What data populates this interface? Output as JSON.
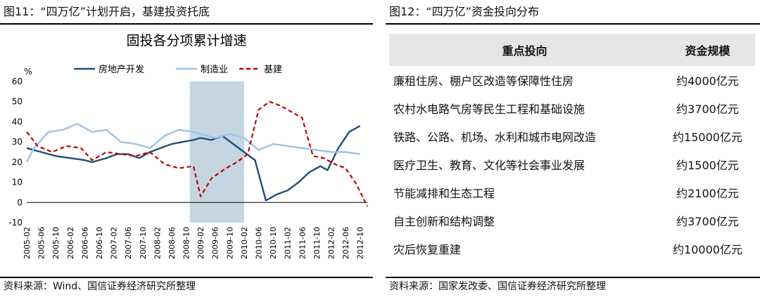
{
  "left_panel": {
    "title": "图11：“四万亿”计划开启，基建投资托底",
    "source": "资料来源：Wind、国信证券经济研究所整理"
  },
  "right_panel": {
    "title": "图12：“四万亿”资金投向分布",
    "source": "资料来源：国家发改委、国信证券经济研究所整理",
    "table": {
      "headers": [
        "重点投向",
        "资金规模"
      ],
      "rows": [
        [
          "廉租住房、棚户区改造等保障性住房",
          "约4000亿元"
        ],
        [
          "农村水电路气房等民生工程和基础设施",
          "约3700亿元"
        ],
        [
          "铁路、公路、机场、水利和城市电网改造",
          "约15000亿元"
        ],
        [
          "医疗卫生、教育、文化等社会事业发展",
          "约1500亿元"
        ],
        [
          "节能减排和生态工程",
          "约2100亿元"
        ],
        [
          "自主创新和结构调整",
          "约3700亿元"
        ],
        [
          "灾后恢复重建",
          "约10000亿元"
        ]
      ]
    }
  },
  "chart_data": {
    "type": "line",
    "title": "固投各分项累计增速",
    "ylabel": "%",
    "ylim": [
      -10,
      60
    ],
    "yticks": [
      -10,
      0,
      10,
      20,
      30,
      40,
      50,
      60
    ],
    "x_start": "2005-02",
    "x_end": "2012-12",
    "x_tick_labels": [
      "2005-02",
      "2005-06",
      "2005-10",
      "2006-02",
      "2006-06",
      "2006-10",
      "2007-02",
      "2007-06",
      "2007-10",
      "2008-02",
      "2008-06",
      "2008-10",
      "2009-02",
      "2009-06",
      "2009-10",
      "2010-02",
      "2010-06",
      "2010-10",
      "2011-02",
      "2011-06",
      "2011-10",
      "2012-02",
      "2012-06",
      "2012-10"
    ],
    "legend_position": "top",
    "shaded_region": [
      "2008-11",
      "2010-02"
    ],
    "shade_color": "#c5d6e2",
    "series": [
      {
        "name": "房地产开发",
        "color": "#1f4e79",
        "style": "solid",
        "points": [
          [
            "2005-02",
            27
          ],
          [
            "2005-06",
            25
          ],
          [
            "2005-10",
            23
          ],
          [
            "2006-02",
            22
          ],
          [
            "2006-06",
            21
          ],
          [
            "2006-08",
            20
          ],
          [
            "2006-12",
            22
          ],
          [
            "2007-03",
            24
          ],
          [
            "2007-06",
            24
          ],
          [
            "2007-09",
            22
          ],
          [
            "2007-12",
            25
          ],
          [
            "2008-03",
            27
          ],
          [
            "2008-06",
            29
          ],
          [
            "2008-09",
            30
          ],
          [
            "2008-12",
            31
          ],
          [
            "2009-02",
            32
          ],
          [
            "2009-05",
            31
          ],
          [
            "2009-08",
            33
          ],
          [
            "2009-11",
            29
          ],
          [
            "2010-02",
            25
          ],
          [
            "2010-05",
            21
          ],
          [
            "2010-08",
            1
          ],
          [
            "2010-11",
            4
          ],
          [
            "2011-02",
            6
          ],
          [
            "2011-05",
            10
          ],
          [
            "2011-08",
            15
          ],
          [
            "2011-11",
            18
          ],
          [
            "2012-01",
            16
          ],
          [
            "2012-04",
            27
          ],
          [
            "2012-07",
            35
          ],
          [
            "2012-10",
            38
          ]
        ]
      },
      {
        "name": "制造业",
        "color": "#9dc3e6",
        "style": "solid",
        "points": [
          [
            "2005-02",
            20
          ],
          [
            "2005-04",
            27
          ],
          [
            "2005-08",
            35
          ],
          [
            "2005-12",
            36
          ],
          [
            "2006-04",
            39
          ],
          [
            "2006-08",
            35
          ],
          [
            "2006-12",
            36
          ],
          [
            "2007-04",
            30
          ],
          [
            "2007-08",
            29
          ],
          [
            "2007-12",
            27
          ],
          [
            "2008-04",
            33
          ],
          [
            "2008-08",
            36
          ],
          [
            "2008-12",
            35
          ],
          [
            "2009-02",
            34
          ],
          [
            "2009-06",
            32
          ],
          [
            "2009-10",
            34
          ],
          [
            "2010-02",
            32
          ],
          [
            "2010-06",
            26
          ],
          [
            "2010-10",
            29
          ],
          [
            "2011-02",
            28
          ],
          [
            "2011-06",
            27
          ],
          [
            "2011-10",
            26
          ],
          [
            "2012-02",
            25
          ],
          [
            "2012-06",
            25
          ],
          [
            "2012-10",
            24
          ]
        ]
      },
      {
        "name": "基建",
        "color": "#c00000",
        "style": "dashed",
        "points": [
          [
            "2005-02",
            35
          ],
          [
            "2005-05",
            28
          ],
          [
            "2005-09",
            25
          ],
          [
            "2006-01",
            28
          ],
          [
            "2006-05",
            27
          ],
          [
            "2006-08",
            21
          ],
          [
            "2006-12",
            25
          ],
          [
            "2007-04",
            24
          ],
          [
            "2007-08",
            23
          ],
          [
            "2007-12",
            25
          ],
          [
            "2008-04",
            19
          ],
          [
            "2008-08",
            17
          ],
          [
            "2008-12",
            18
          ],
          [
            "2009-02",
            3
          ],
          [
            "2009-05",
            12
          ],
          [
            "2009-09",
            17
          ],
          [
            "2009-12",
            20
          ],
          [
            "2010-03",
            24
          ],
          [
            "2010-06",
            46
          ],
          [
            "2010-09",
            50
          ],
          [
            "2010-12",
            48
          ],
          [
            "2011-03",
            45
          ],
          [
            "2011-06",
            42
          ],
          [
            "2011-09",
            23
          ],
          [
            "2011-12",
            22
          ],
          [
            "2012-03",
            19
          ],
          [
            "2012-06",
            17
          ],
          [
            "2012-09",
            9
          ],
          [
            "2012-12",
            -2
          ]
        ]
      }
    ]
  }
}
